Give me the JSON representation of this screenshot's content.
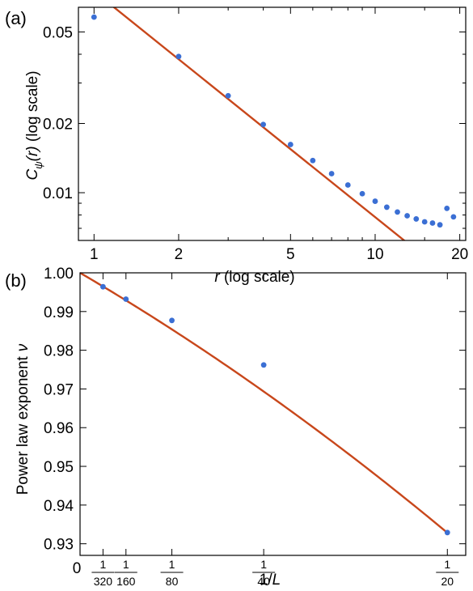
{
  "chart_data": [
    {
      "panel_label": "(a)",
      "type": "scatter",
      "xlabel_var": "r",
      "xlabel_suffix": " (log scale)",
      "ylabel_var": "C",
      "ylabel_sub": "ψ",
      "ylabel_arg": "(r)",
      "ylabel_suffix": " (log scale)",
      "x_scale": "log",
      "y_scale": "log",
      "xlim": [
        0.88,
        21
      ],
      "ylim": [
        0.0062,
        0.064
      ],
      "x_ticks": [
        {
          "value": 1,
          "label": "1"
        },
        {
          "value": 2,
          "label": "2"
        },
        {
          "value": 5,
          "label": "5"
        },
        {
          "value": 10,
          "label": "10"
        },
        {
          "value": 20,
          "label": "20"
        }
      ],
      "x_minor_ticks": [
        3,
        4,
        6,
        7,
        8,
        9,
        15
      ],
      "y_ticks": [
        {
          "value": 0.01,
          "label": "0.01"
        },
        {
          "value": 0.02,
          "label": "0.02"
        },
        {
          "value": 0.05,
          "label": "0.05"
        }
      ],
      "y_minor_ticks": [
        0.007,
        0.008,
        0.009,
        0.03,
        0.04
      ],
      "series": [
        {
          "kind": "points",
          "color": "#3b6fd4",
          "x": [
            1,
            2,
            3,
            4,
            5,
            6,
            7,
            8,
            9,
            10,
            11,
            12,
            13,
            14,
            15,
            16,
            17,
            18,
            19
          ],
          "y": [
            0.058,
            0.0391,
            0.0264,
            0.0198,
            0.0162,
            0.0138,
            0.0121,
            0.0108,
            0.0099,
            0.00918,
            0.00865,
            0.00824,
            0.00794,
            0.00769,
            0.00747,
            0.00738,
            0.00725,
            0.00855,
            0.00785
          ]
        },
        {
          "kind": "fit-line",
          "color": "#c8471b",
          "model": "power law",
          "x": [
            0.88,
            17
          ],
          "y": [
            0.0852,
            0.00465
          ]
        }
      ]
    },
    {
      "panel_label": "(b)",
      "type": "scatter",
      "xlabel_pre": "1/",
      "xlabel_var": "L",
      "ylabel": "Power law exponent",
      "ylabel_var": "ν",
      "xlim": [
        0,
        0.0525
      ],
      "ylim": [
        0.927,
        1.0
      ],
      "origin_label": "0",
      "x_ticks": [
        {
          "value": 0.003125,
          "num": "1",
          "den": "320"
        },
        {
          "value": 0.00625,
          "num": "1",
          "den": "160"
        },
        {
          "value": 0.0125,
          "num": "1",
          "den": "80"
        },
        {
          "value": 0.025,
          "num": "1",
          "den": "40"
        },
        {
          "value": 0.05,
          "num": "1",
          "den": "20"
        }
      ],
      "y_ticks": [
        {
          "value": 0.93,
          "label": "0.93"
        },
        {
          "value": 0.94,
          "label": "0.94"
        },
        {
          "value": 0.95,
          "label": "0.95"
        },
        {
          "value": 0.96,
          "label": "0.96"
        },
        {
          "value": 0.97,
          "label": "0.97"
        },
        {
          "value": 0.98,
          "label": "0.98"
        },
        {
          "value": 0.99,
          "label": "0.99"
        },
        {
          "value": 1.0,
          "label": "1.00"
        }
      ],
      "series": [
        {
          "kind": "points",
          "color": "#3b6fd4",
          "x": [
            0.003125,
            0.00625,
            0.0125,
            0.025,
            0.05
          ],
          "y": [
            0.9964,
            0.9932,
            0.9877,
            0.9762,
            0.9329
          ]
        },
        {
          "kind": "fit-curve",
          "color": "#c8471b",
          "model": "quadratic",
          "coefficients": [
            1.0,
            -1.11,
            -4.66
          ]
        }
      ]
    }
  ]
}
